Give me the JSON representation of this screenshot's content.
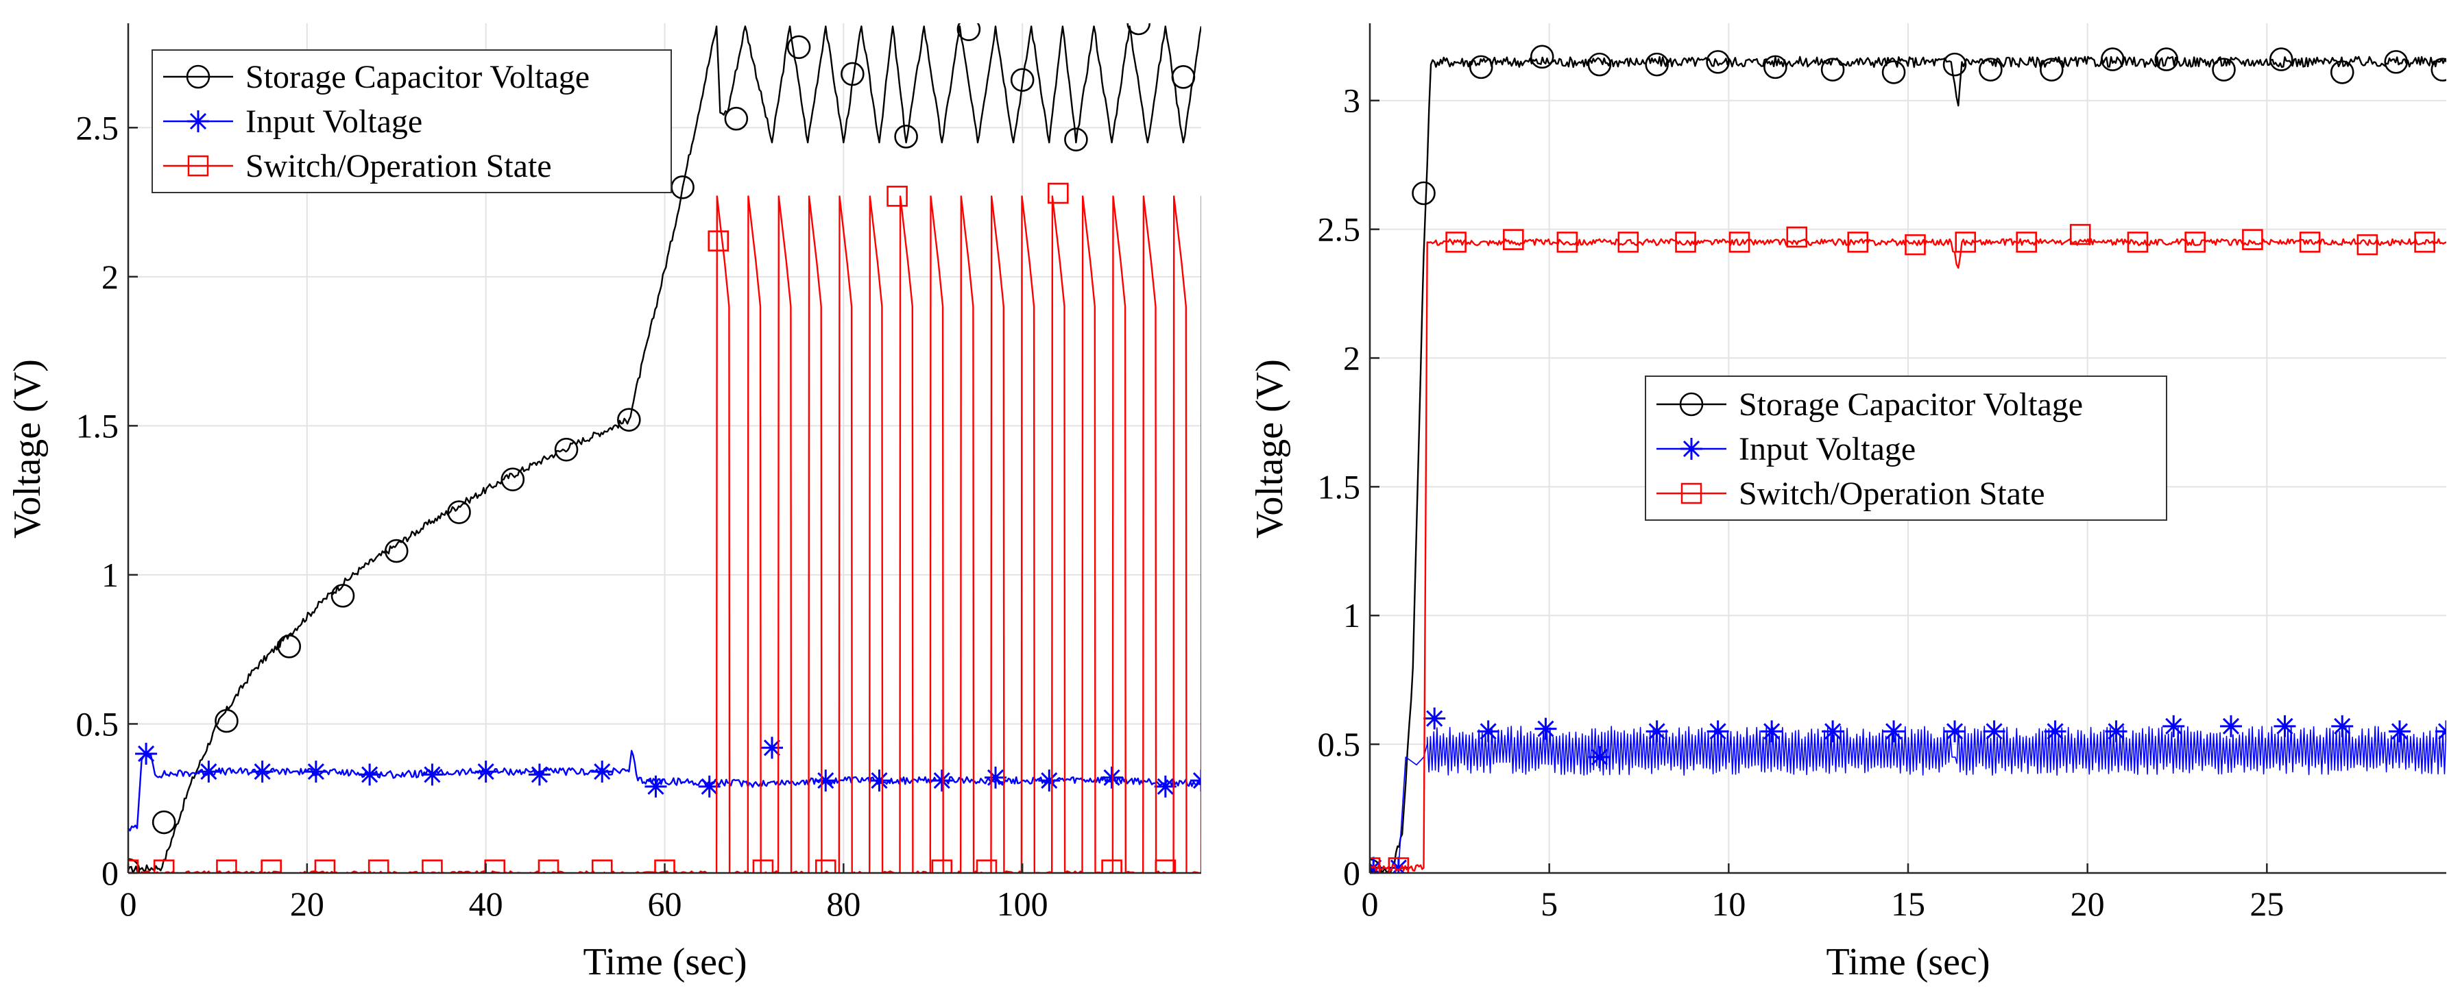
{
  "chart_data": [
    {
      "type": "line",
      "panel": "left",
      "xlabel": "Time (sec)",
      "ylabel": "Voltage (V)",
      "xlim": [
        0,
        120
      ],
      "ylim": [
        0,
        2.85
      ],
      "xticks": [
        0,
        20,
        40,
        60,
        80,
        100
      ],
      "yticks": [
        0,
        0.5,
        1,
        1.5,
        2,
        2.5
      ],
      "xtick_labels": [
        "0",
        "20",
        "40",
        "60",
        "80",
        "100"
      ],
      "ytick_labels": [
        "0",
        "0.5",
        "1",
        "1.5",
        "2",
        "2.5"
      ],
      "grid": true,
      "legend_position": "top-left",
      "legend": [
        "Storage Capacitor Voltage",
        "Input Voltage",
        "Switch/Operation State"
      ],
      "series": [
        {
          "name": "Storage Capacitor Voltage",
          "color": "#000000",
          "marker": "circle",
          "x": [
            0,
            3.8,
            7,
            10,
            14,
            18,
            22,
            26,
            30,
            34,
            38,
            42,
            46,
            50,
            56,
            61,
            62,
            65.8,
            66.2,
            67,
            69,
            72,
            74,
            76,
            78,
            80,
            82,
            84,
            85.5,
            87,
            89,
            91,
            93,
            95,
            97,
            99,
            101,
            103,
            104.5,
            106,
            108,
            110,
            112,
            114,
            116,
            118,
            120
          ],
          "values": [
            0.01,
            0.02,
            0.3,
            0.5,
            0.68,
            0.8,
            0.92,
            1.02,
            1.1,
            1.18,
            1.25,
            1.32,
            1.38,
            1.44,
            1.52,
            2.15,
            2.3,
            2.84,
            2.55,
            2.55,
            2.84,
            2.45,
            2.84,
            2.45,
            2.84,
            2.45,
            2.84,
            2.45,
            2.84,
            2.45,
            2.84,
            2.45,
            2.84,
            2.45,
            2.84,
            2.45,
            2.84,
            2.45,
            2.84,
            2.45,
            2.84,
            2.45,
            2.84,
            2.45,
            2.84,
            2.45,
            2.84
          ],
          "markers_x": [
            0,
            4,
            11,
            18,
            24,
            30,
            37,
            43,
            49,
            56,
            62,
            68,
            75,
            81,
            87,
            94,
            100,
            106,
            113,
            118
          ],
          "markers_y": [
            0.01,
            0.17,
            0.51,
            0.76,
            0.93,
            1.08,
            1.21,
            1.32,
            1.42,
            1.52,
            2.3,
            2.53,
            2.77,
            2.68,
            2.47,
            2.83,
            2.66,
            2.46,
            2.85,
            2.67
          ]
        },
        {
          "name": "Input Voltage",
          "color": "#0000ff",
          "marker": "star",
          "x": [
            0,
            1,
            1.5,
            2,
            2.5,
            3,
            10,
            20,
            30,
            40,
            50,
            56,
            56.3,
            57,
            70,
            80,
            90,
            100,
            110,
            120
          ],
          "values": [
            0.15,
            0.15,
            0.38,
            0.4,
            0.4,
            0.33,
            0.34,
            0.34,
            0.33,
            0.34,
            0.34,
            0.34,
            0.41,
            0.31,
            0.3,
            0.31,
            0.31,
            0.31,
            0.31,
            0.3
          ],
          "markers_x": [
            2,
            9,
            15,
            21,
            27,
            34,
            40,
            46,
            53,
            59,
            65,
            72,
            78,
            84,
            91,
            97,
            103,
            110,
            116,
            120
          ],
          "markers_y": [
            0.4,
            0.34,
            0.34,
            0.34,
            0.33,
            0.33,
            0.34,
            0.33,
            0.34,
            0.29,
            0.29,
            0.42,
            0.31,
            0.31,
            0.31,
            0.32,
            0.31,
            0.32,
            0.29,
            0.31
          ]
        },
        {
          "name": "Switch/Operation State",
          "color": "#ff0000",
          "marker": "square",
          "baseline": 0.0,
          "pulse_peak": 2.27,
          "pulse_times": [
            65.8,
            69.3,
            72.7,
            76.1,
            79.5,
            82.9,
            86.3,
            89.7,
            93.1,
            96.5,
            99.9,
            103.3,
            106.7,
            110.1,
            113.5,
            116.9,
            120
          ],
          "markers_x": [
            0,
            4,
            11,
            16,
            22,
            28,
            34,
            41,
            47,
            53,
            60,
            66,
            71,
            78,
            86,
            91,
            96,
            104,
            110,
            116
          ],
          "markers_y": [
            0.01,
            0.01,
            0.01,
            0.01,
            0.01,
            0.01,
            0.01,
            0.01,
            0.01,
            0.01,
            0.01,
            2.12,
            0.01,
            0.01,
            2.27,
            0.01,
            0.01,
            2.28,
            0.01,
            0.01
          ]
        }
      ]
    },
    {
      "type": "line",
      "panel": "right",
      "xlabel": "Time (sec)",
      "ylabel": "Voltage (V)",
      "xlim": [
        0,
        30
      ],
      "ylim": [
        0,
        3.3
      ],
      "xticks": [
        0,
        5,
        10,
        15,
        20,
        25
      ],
      "yticks": [
        0,
        0.5,
        1,
        1.5,
        2,
        2.5,
        3
      ],
      "xtick_labels": [
        "0",
        "5",
        "10",
        "15",
        "20",
        "25"
      ],
      "ytick_labels": [
        "0",
        "0.5",
        "1",
        "1.5",
        "2",
        "2.5",
        "3"
      ],
      "grid": true,
      "legend_position": "center",
      "legend": [
        "Storage Capacitor Voltage",
        "Input Voltage",
        "Switch/Operation State"
      ],
      "series": [
        {
          "name": "Storage Capacitor Voltage",
          "color": "#000000",
          "marker": "circle",
          "x": [
            0,
            0.6,
            0.9,
            1.2,
            1.5,
            1.7,
            1.8,
            16.2,
            16.4,
            16.5,
            30
          ],
          "values": [
            0.01,
            0.01,
            0.15,
            0.8,
            2.4,
            3.14,
            3.15,
            3.15,
            2.98,
            3.15,
            3.15
          ],
          "markers_x": [
            0,
            1.5,
            3.1,
            4.8,
            6.4,
            8,
            9.7,
            11.3,
            12.9,
            14.6,
            16.3,
            17.3,
            19,
            20.7,
            22.2,
            23.8,
            25.4,
            27.1,
            28.6,
            29.9
          ],
          "markers_y": [
            0.01,
            2.64,
            3.13,
            3.17,
            3.14,
            3.14,
            3.15,
            3.13,
            3.12,
            3.11,
            3.14,
            3.12,
            3.12,
            3.16,
            3.16,
            3.12,
            3.16,
            3.11,
            3.15,
            3.12
          ]
        },
        {
          "name": "Input Voltage",
          "color": "#0000ff",
          "marker": "star",
          "x": [
            0,
            0.8,
            1.0,
            1.3,
            1.5,
            1.6,
            3.5,
            3.9,
            4.0,
            16.2,
            16.3,
            30
          ],
          "values": [
            0.02,
            0.02,
            0.45,
            0.42,
            0.45,
            0.5,
            0.5,
            0.45,
            0.5,
            0.5,
            0.45,
            0.5
          ],
          "band": [
            0.38,
            0.57
          ],
          "markers_x": [
            0.1,
            0.8,
            1.8,
            3.3,
            4.9,
            6.4,
            8.0,
            9.7,
            11.2,
            12.9,
            14.6,
            16.3,
            17.4,
            19.1,
            20.8,
            22.4,
            24.0,
            25.5,
            27.1,
            28.7,
            30
          ],
          "markers_y": [
            0.02,
            0.02,
            0.6,
            0.55,
            0.56,
            0.45,
            0.55,
            0.55,
            0.55,
            0.55,
            0.55,
            0.55,
            0.55,
            0.55,
            0.55,
            0.57,
            0.57,
            0.57,
            0.57,
            0.55,
            0.55
          ]
        },
        {
          "name": "Switch/Operation State",
          "color": "#ff0000",
          "marker": "square",
          "x": [
            0,
            1.5,
            1.6,
            1.8,
            16.2,
            16.4,
            16.5,
            30
          ],
          "values": [
            0.02,
            0.02,
            2.45,
            2.45,
            2.45,
            2.35,
            2.45,
            2.45
          ],
          "markers_x": [
            0,
            0.8,
            2.4,
            4.0,
            5.5,
            7.2,
            8.8,
            10.3,
            11.9,
            13.6,
            15.2,
            16.6,
            18.3,
            19.8,
            21.4,
            23.0,
            24.6,
            26.2,
            27.8,
            29.4
          ],
          "markers_y": [
            0.02,
            0.02,
            2.45,
            2.46,
            2.45,
            2.45,
            2.45,
            2.45,
            2.47,
            2.45,
            2.44,
            2.45,
            2.45,
            2.48,
            2.45,
            2.45,
            2.46,
            2.45,
            2.44,
            2.45
          ]
        }
      ]
    }
  ]
}
